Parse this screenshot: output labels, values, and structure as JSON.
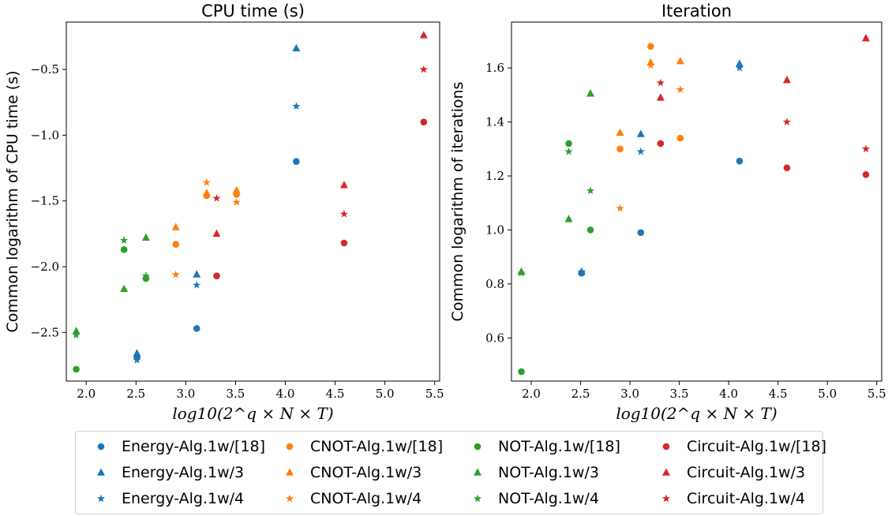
{
  "colors": {
    "Energy": "#1f77b4",
    "CNOT": "#ff7f0e",
    "NOT": "#2ca02c",
    "Circuit": "#d62728"
  },
  "chart_data": [
    {
      "type": "scatter",
      "title": "CPU time (s)",
      "xlabel": "log10(2^q × N × T)",
      "ylabel": "Common logarithm of CPU time (s)",
      "xlim": [
        1.8,
        5.55
      ],
      "ylim": [
        -2.87,
        -0.14
      ],
      "xticks": [
        "2.0",
        "2.5",
        "3.0",
        "3.5",
        "4.0",
        "4.5",
        "5.0",
        "5.5"
      ],
      "yticks": [
        "−2.5",
        "−2.0",
        "−1.5",
        "−1.0",
        "−0.5"
      ],
      "series": [
        {
          "name": "Energy-Alg.1w/[18]",
          "group": "Energy",
          "marker": "circle",
          "x": [
            2.51,
            3.11,
            4.11
          ],
          "y": [
            -2.69,
            -2.47,
            -1.2
          ]
        },
        {
          "name": "Energy-Alg.1w/3",
          "group": "Energy",
          "marker": "triangle",
          "x": [
            2.51,
            3.11,
            4.11
          ],
          "y": [
            -2.66,
            -2.06,
            -0.34
          ]
        },
        {
          "name": "Energy-Alg.1w/4",
          "group": "Energy",
          "marker": "star",
          "x": [
            2.51,
            3.11,
            4.11
          ],
          "y": [
            -2.71,
            -2.14,
            -0.78
          ]
        },
        {
          "name": "CNOT-Alg.1w/[18]",
          "group": "CNOT",
          "marker": "circle",
          "x": [
            2.9,
            3.21,
            3.51
          ],
          "y": [
            -1.83,
            -1.46,
            -1.45
          ]
        },
        {
          "name": "CNOT-Alg.1w/3",
          "group": "CNOT",
          "marker": "triangle",
          "x": [
            2.9,
            3.21,
            3.51
          ],
          "y": [
            -1.7,
            -1.44,
            -1.42
          ]
        },
        {
          "name": "CNOT-Alg.1w/4",
          "group": "CNOT",
          "marker": "star",
          "x": [
            2.9,
            3.21,
            3.51
          ],
          "y": [
            -2.06,
            -1.36,
            -1.51
          ]
        },
        {
          "name": "NOT-Alg.1w/[18]",
          "group": "NOT",
          "marker": "circle",
          "x": [
            1.9,
            2.38,
            2.6
          ],
          "y": [
            -2.78,
            -1.87,
            -2.09
          ]
        },
        {
          "name": "NOT-Alg.1w/3",
          "group": "NOT",
          "marker": "triangle",
          "x": [
            1.9,
            2.38,
            2.6
          ],
          "y": [
            -2.49,
            -2.17,
            -1.78
          ]
        },
        {
          "name": "NOT-Alg.1w/4",
          "group": "NOT",
          "marker": "star",
          "x": [
            1.9,
            2.38,
            2.6
          ],
          "y": [
            -2.52,
            -1.8,
            -2.07
          ]
        },
        {
          "name": "Circuit-Alg.1w/[18]",
          "group": "Circuit",
          "marker": "circle",
          "x": [
            3.31,
            4.59,
            5.39
          ],
          "y": [
            -2.07,
            -1.82,
            -0.9
          ]
        },
        {
          "name": "Circuit-Alg.1w/3",
          "group": "Circuit",
          "marker": "triangle",
          "x": [
            3.31,
            4.59,
            5.39
          ],
          "y": [
            -1.75,
            -1.38,
            -0.24
          ]
        },
        {
          "name": "Circuit-Alg.1w/4",
          "group": "Circuit",
          "marker": "star",
          "x": [
            3.31,
            4.59,
            5.39
          ],
          "y": [
            -1.48,
            -1.6,
            -0.5
          ]
        }
      ]
    },
    {
      "type": "scatter",
      "title": "Iteration",
      "xlabel": "log10(2^q × N × T)",
      "ylabel": "Common logarithm of iterations",
      "xlim": [
        1.8,
        5.55
      ],
      "ylim": [
        0.44,
        1.77
      ],
      "xticks": [
        "2.0",
        "2.5",
        "3.0",
        "3.5",
        "4.0",
        "4.5",
        "5.0",
        "5.5"
      ],
      "yticks": [
        "0.6",
        "0.8",
        "1.0",
        "1.2",
        "1.4",
        "1.6"
      ],
      "series": [
        {
          "name": "Energy-Alg.1w/[18]",
          "group": "Energy",
          "marker": "circle",
          "x": [
            2.51,
            3.11,
            4.11
          ],
          "y": [
            0.84,
            0.99,
            1.255
          ]
        },
        {
          "name": "Energy-Alg.1w/3",
          "group": "Energy",
          "marker": "triangle",
          "x": [
            2.51,
            3.11,
            4.11
          ],
          "y": [
            0.845,
            1.355,
            1.615
          ]
        },
        {
          "name": "Energy-Alg.1w/4",
          "group": "Energy",
          "marker": "star",
          "x": [
            2.51,
            3.11,
            4.11
          ],
          "y": [
            0.845,
            1.29,
            1.6
          ]
        },
        {
          "name": "CNOT-Alg.1w/[18]",
          "group": "CNOT",
          "marker": "circle",
          "x": [
            2.9,
            3.21,
            3.51
          ],
          "y": [
            1.3,
            1.68,
            1.34
          ]
        },
        {
          "name": "CNOT-Alg.1w/3",
          "group": "CNOT",
          "marker": "triangle",
          "x": [
            2.9,
            3.21,
            3.51
          ],
          "y": [
            1.36,
            1.62,
            1.625
          ]
        },
        {
          "name": "CNOT-Alg.1w/4",
          "group": "CNOT",
          "marker": "star",
          "x": [
            2.9,
            3.21,
            3.51
          ],
          "y": [
            1.08,
            1.61,
            1.52
          ]
        },
        {
          "name": "NOT-Alg.1w/[18]",
          "group": "NOT",
          "marker": "circle",
          "x": [
            1.9,
            2.38,
            2.6
          ],
          "y": [
            0.475,
            1.32,
            1.0
          ]
        },
        {
          "name": "NOT-Alg.1w/3",
          "group": "NOT",
          "marker": "triangle",
          "x": [
            1.9,
            2.38,
            2.6
          ],
          "y": [
            0.845,
            1.04,
            1.505
          ]
        },
        {
          "name": "NOT-Alg.1w/4",
          "group": "NOT",
          "marker": "star",
          "x": [
            1.9,
            2.38,
            2.6
          ],
          "y": [
            0.84,
            1.29,
            1.145
          ]
        },
        {
          "name": "Circuit-Alg.1w/[18]",
          "group": "Circuit",
          "marker": "circle",
          "x": [
            3.31,
            4.59,
            5.39
          ],
          "y": [
            1.32,
            1.23,
            1.205
          ]
        },
        {
          "name": "Circuit-Alg.1w/3",
          "group": "Circuit",
          "marker": "triangle",
          "x": [
            3.31,
            4.59,
            5.39
          ],
          "y": [
            1.49,
            1.555,
            1.71
          ]
        },
        {
          "name": "Circuit-Alg.1w/4",
          "group": "Circuit",
          "marker": "star",
          "x": [
            3.31,
            4.59,
            5.39
          ],
          "y": [
            1.545,
            1.4,
            1.3
          ]
        }
      ]
    }
  ],
  "legend": {
    "placement": "bottom-center",
    "items": [
      {
        "label": "Energy-Alg.1w/[18]",
        "group": "Energy",
        "marker": "circle"
      },
      {
        "label": "CNOT-Alg.1w/[18]",
        "group": "CNOT",
        "marker": "circle"
      },
      {
        "label": "NOT-Alg.1w/[18]",
        "group": "NOT",
        "marker": "circle"
      },
      {
        "label": "Circuit-Alg.1w/[18]",
        "group": "Circuit",
        "marker": "circle"
      },
      {
        "label": "Energy-Alg.1w/3",
        "group": "Energy",
        "marker": "triangle"
      },
      {
        "label": "CNOT-Alg.1w/3",
        "group": "CNOT",
        "marker": "triangle"
      },
      {
        "label": "NOT-Alg.1w/3",
        "group": "NOT",
        "marker": "triangle"
      },
      {
        "label": "Circuit-Alg.1w/3",
        "group": "Circuit",
        "marker": "triangle"
      },
      {
        "label": "Energy-Alg.1w/4",
        "group": "Energy",
        "marker": "star"
      },
      {
        "label": "CNOT-Alg.1w/4",
        "group": "CNOT",
        "marker": "star"
      },
      {
        "label": "NOT-Alg.1w/4",
        "group": "NOT",
        "marker": "star"
      },
      {
        "label": "Circuit-Alg.1w/4",
        "group": "Circuit",
        "marker": "star"
      }
    ]
  }
}
